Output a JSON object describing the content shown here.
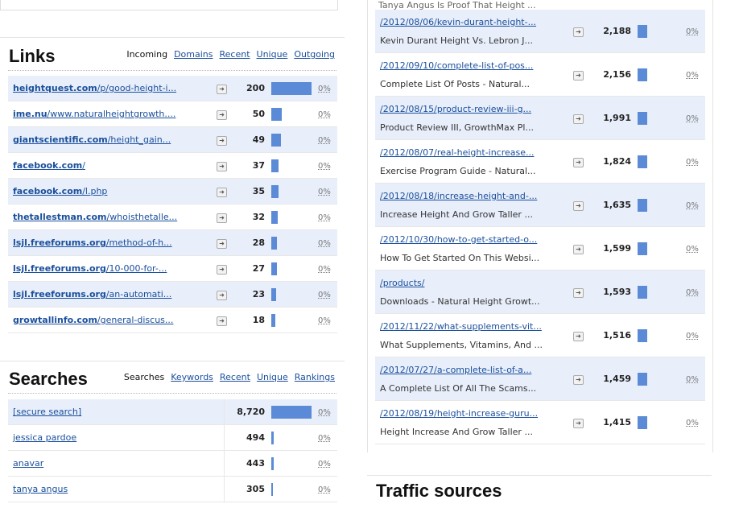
{
  "top_fragment": {
    "left_value": "..., ...",
    "right_text": "Tanya Angus Is Proof That Height ..."
  },
  "links": {
    "title": "Links",
    "tabs": [
      {
        "label": "Incoming",
        "active": true
      },
      {
        "label": "Domains",
        "active": false
      },
      {
        "label": "Recent",
        "active": false
      },
      {
        "label": "Unique",
        "active": false
      },
      {
        "label": "Outgoing",
        "active": false
      }
    ],
    "rows": [
      {
        "domain": "heightquest.com",
        "path": "/p/good-height-i...",
        "count": "200",
        "bar": 1.0,
        "pct": "0%"
      },
      {
        "domain": "ime.nu",
        "path": "/www.naturalheightgrowth....",
        "count": "50",
        "bar": 0.25,
        "pct": "0%"
      },
      {
        "domain": "giantscientific.com",
        "path": "/height_gain...",
        "count": "49",
        "bar": 0.245,
        "pct": "0%"
      },
      {
        "domain": "facebook.com",
        "path": "/",
        "count": "37",
        "bar": 0.185,
        "pct": "0%"
      },
      {
        "domain": "facebook.com",
        "path": "/l.php",
        "count": "35",
        "bar": 0.175,
        "pct": "0%"
      },
      {
        "domain": "thetallestman.com",
        "path": "/whoisthetalle...",
        "count": "32",
        "bar": 0.16,
        "pct": "0%"
      },
      {
        "domain": "lsjl.freeforums.org",
        "path": "/method-of-h...",
        "count": "28",
        "bar": 0.14,
        "pct": "0%"
      },
      {
        "domain": "lsjl.freeforums.org",
        "path": "/10-000-for-...",
        "count": "27",
        "bar": 0.135,
        "pct": "0%"
      },
      {
        "domain": "lsjl.freeforums.org",
        "path": "/an-automati...",
        "count": "23",
        "bar": 0.115,
        "pct": "0%"
      },
      {
        "domain": "growtallinfo.com",
        "path": "/general-discus...",
        "count": "18",
        "bar": 0.09,
        "pct": "0%"
      }
    ]
  },
  "searches": {
    "title": "Searches",
    "tabs": [
      {
        "label": "Searches",
        "active": true
      },
      {
        "label": "Keywords",
        "active": false
      },
      {
        "label": "Recent",
        "active": false
      },
      {
        "label": "Unique",
        "active": false
      },
      {
        "label": "Rankings",
        "active": false
      }
    ],
    "rows": [
      {
        "term": "[secure search]",
        "count": "8,720",
        "bar": 1.0,
        "pct": "0%"
      },
      {
        "term": "jessica pardoe",
        "count": "494",
        "bar": 0.057,
        "pct": "0%"
      },
      {
        "term": "anavar",
        "count": "443",
        "bar": 0.051,
        "pct": "0%"
      },
      {
        "term": "tanya angus",
        "count": "305",
        "bar": 0.035,
        "pct": "0%"
      }
    ]
  },
  "pages": {
    "rows": [
      {
        "url": "/2012/08/06/kevin-durant-height-...",
        "desc": "Kevin Durant Height Vs. Lebron J...",
        "count": "2,188",
        "pct": "0%"
      },
      {
        "url": "/2012/09/10/complete-list-of-pos...",
        "desc": "Complete List Of Posts - Natural...",
        "count": "2,156",
        "pct": "0%"
      },
      {
        "url": "/2012/08/15/product-review-iii-g...",
        "desc": "Product Review III, GrowthMax Pl...",
        "count": "1,991",
        "pct": "0%"
      },
      {
        "url": "/2012/08/07/real-height-increase...",
        "desc": "Exercise Program Guide - Natural...",
        "count": "1,824",
        "pct": "0%"
      },
      {
        "url": "/2012/08/18/increase-height-and-...",
        "desc": "Increase Height And Grow Taller ...",
        "count": "1,635",
        "pct": "0%"
      },
      {
        "url": "/2012/10/30/how-to-get-started-o...",
        "desc": "How To Get Started On This Websi...",
        "count": "1,599",
        "pct": "0%"
      },
      {
        "url": "/products/",
        "desc": "Downloads - Natural Height Growt...",
        "count": "1,593",
        "pct": "0%"
      },
      {
        "url": "/2012/11/22/what-supplements-vit...",
        "desc": "What Supplements, Vitamins, And ...",
        "count": "1,516",
        "pct": "0%"
      },
      {
        "url": "/2012/07/27/a-complete-list-of-a...",
        "desc": "A Complete List Of All The Scams...",
        "count": "1,459",
        "pct": "0%"
      },
      {
        "url": "/2012/08/19/height-increase-guru...",
        "desc": "Height Increase And Grow Taller ...",
        "count": "1,415",
        "pct": "0%"
      }
    ]
  },
  "traffic": {
    "title": "Traffic sources"
  },
  "colors": {
    "link": "#1a4f9c",
    "bar": "#5b8ad6",
    "row_alt": "#e8effb"
  },
  "icons": {
    "row_action": "arrow-right-icon"
  }
}
